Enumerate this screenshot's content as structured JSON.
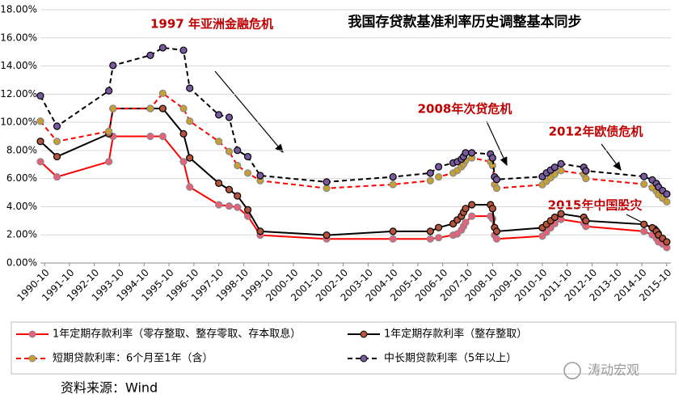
{
  "chart_data": {
    "type": "line",
    "title": "我国存贷款基准利率历史调整基本同步",
    "annotations": [
      "1997 年亚洲金融危机",
      "2008年次贷危机",
      "2012年欧债危机",
      "2015年中国股灾"
    ],
    "source": "资料来源：Wind",
    "watermark": "涛动宏观",
    "x": [
      "1990-08",
      "1991-04",
      "1993-05",
      "1993-07",
      "1995-01",
      "1995-07",
      "1996-05",
      "1996-08",
      "1997-10",
      "1998-03",
      "1998-07",
      "1998-12",
      "1999-06",
      "2002-02",
      "2004-10",
      "2006-04",
      "2006-08",
      "2007-03",
      "2007-05",
      "2007-07",
      "2007-08",
      "2007-09",
      "2007-12",
      "2008-09",
      "2008-10",
      "2008-11",
      "2008-12",
      "2010-10",
      "2010-12",
      "2011-02",
      "2011-04",
      "2011-07",
      "2012-06",
      "2012-07",
      "2014-11",
      "2015-03",
      "2015-05",
      "2015-06",
      "2015-08",
      "2015-10"
    ],
    "xlim": [
      "1990-08",
      "2015-12"
    ],
    "xticks": [
      "1990-10",
      "1991-10",
      "1992-10",
      "1993-10",
      "1994-10",
      "1995-10",
      "1996-10",
      "1997-10",
      "1998-10",
      "1999-10",
      "2000-10",
      "2001-10",
      "2002-10",
      "2003-10",
      "2004-10",
      "2005-10",
      "2006-10",
      "2007-10",
      "2008-10",
      "2009-10",
      "2010-10",
      "2011-10",
      "2012-10",
      "2013-10",
      "2014-10",
      "2015-10"
    ],
    "ylim": [
      0,
      18
    ],
    "yticks": [
      {
        "value": 0,
        "label": "0.00%"
      },
      {
        "value": 2,
        "label": "2.00%"
      },
      {
        "value": 4,
        "label": "4.00%"
      },
      {
        "value": 6,
        "label": "6.00%"
      },
      {
        "value": 8,
        "label": "8.00%"
      },
      {
        "value": 10,
        "label": "10.00%"
      },
      {
        "value": 12,
        "label": "12.00%"
      },
      {
        "value": 14,
        "label": "14.00%"
      },
      {
        "value": 16,
        "label": "16.00%"
      },
      {
        "value": 18,
        "label": "18.00%"
      }
    ],
    "grid": true,
    "series": [
      {
        "name": "1年定期存款利率（零存整取、整存零取、存本取息）",
        "color": "#ff0000",
        "marker_color": "#e8607a",
        "dashed": false,
        "values": [
          7.2,
          6.12,
          7.2,
          9.0,
          9.0,
          9.0,
          7.2,
          5.4,
          4.14,
          4.05,
          3.96,
          3.33,
          1.98,
          1.71,
          1.71,
          1.71,
          1.8,
          1.98,
          2.07,
          2.34,
          2.61,
          2.88,
          3.33,
          3.33,
          3.15,
          1.98,
          1.71,
          1.91,
          2.2,
          2.5,
          2.8,
          3.1,
          2.85,
          2.6,
          2.25,
          2.0,
          1.75,
          1.5,
          1.35,
          1.1
        ]
      },
      {
        "name": "1年定期存款利率（整存整取）",
        "color": "#000000",
        "marker_color": "#b5533c",
        "dashed": false,
        "values": [
          8.64,
          7.56,
          9.18,
          10.98,
          10.98,
          10.98,
          9.18,
          7.47,
          5.67,
          5.22,
          4.77,
          3.78,
          2.25,
          1.98,
          2.25,
          2.25,
          2.52,
          2.79,
          3.06,
          3.33,
          3.6,
          3.87,
          4.14,
          4.14,
          3.87,
          2.52,
          2.25,
          2.5,
          2.75,
          3.0,
          3.25,
          3.5,
          3.25,
          3.0,
          2.75,
          2.5,
          2.25,
          2.0,
          1.75,
          1.5
        ]
      },
      {
        "name": "短期贷款利率：6个月至1年（含）",
        "color": "#ff0000",
        "marker_color": "#c8a032",
        "dashed": true,
        "values": [
          10.08,
          8.64,
          9.36,
          10.98,
          10.98,
          12.06,
          10.98,
          10.08,
          8.64,
          7.92,
          6.93,
          6.39,
          5.85,
          5.31,
          5.58,
          5.85,
          6.12,
          6.39,
          6.57,
          6.84,
          7.02,
          7.29,
          7.47,
          7.2,
          6.93,
          5.58,
          5.31,
          5.56,
          5.81,
          6.06,
          6.31,
          6.56,
          6.31,
          6.0,
          5.6,
          5.35,
          5.1,
          4.85,
          4.6,
          4.35
        ]
      },
      {
        "name": "中长期贷款利率（5年以上）",
        "color": "#000000",
        "marker_color": "#7a5a9e",
        "dashed": true,
        "values": [
          11.88,
          9.72,
          12.24,
          14.04,
          14.76,
          15.3,
          15.12,
          12.42,
          10.53,
          10.35,
          8.01,
          7.56,
          6.21,
          5.76,
          6.12,
          6.39,
          6.84,
          7.11,
          7.2,
          7.38,
          7.56,
          7.83,
          7.83,
          7.74,
          7.47,
          6.12,
          5.94,
          6.14,
          6.4,
          6.6,
          6.8,
          7.05,
          6.8,
          6.55,
          6.15,
          5.9,
          5.65,
          5.4,
          5.15,
          4.9
        ]
      }
    ]
  }
}
